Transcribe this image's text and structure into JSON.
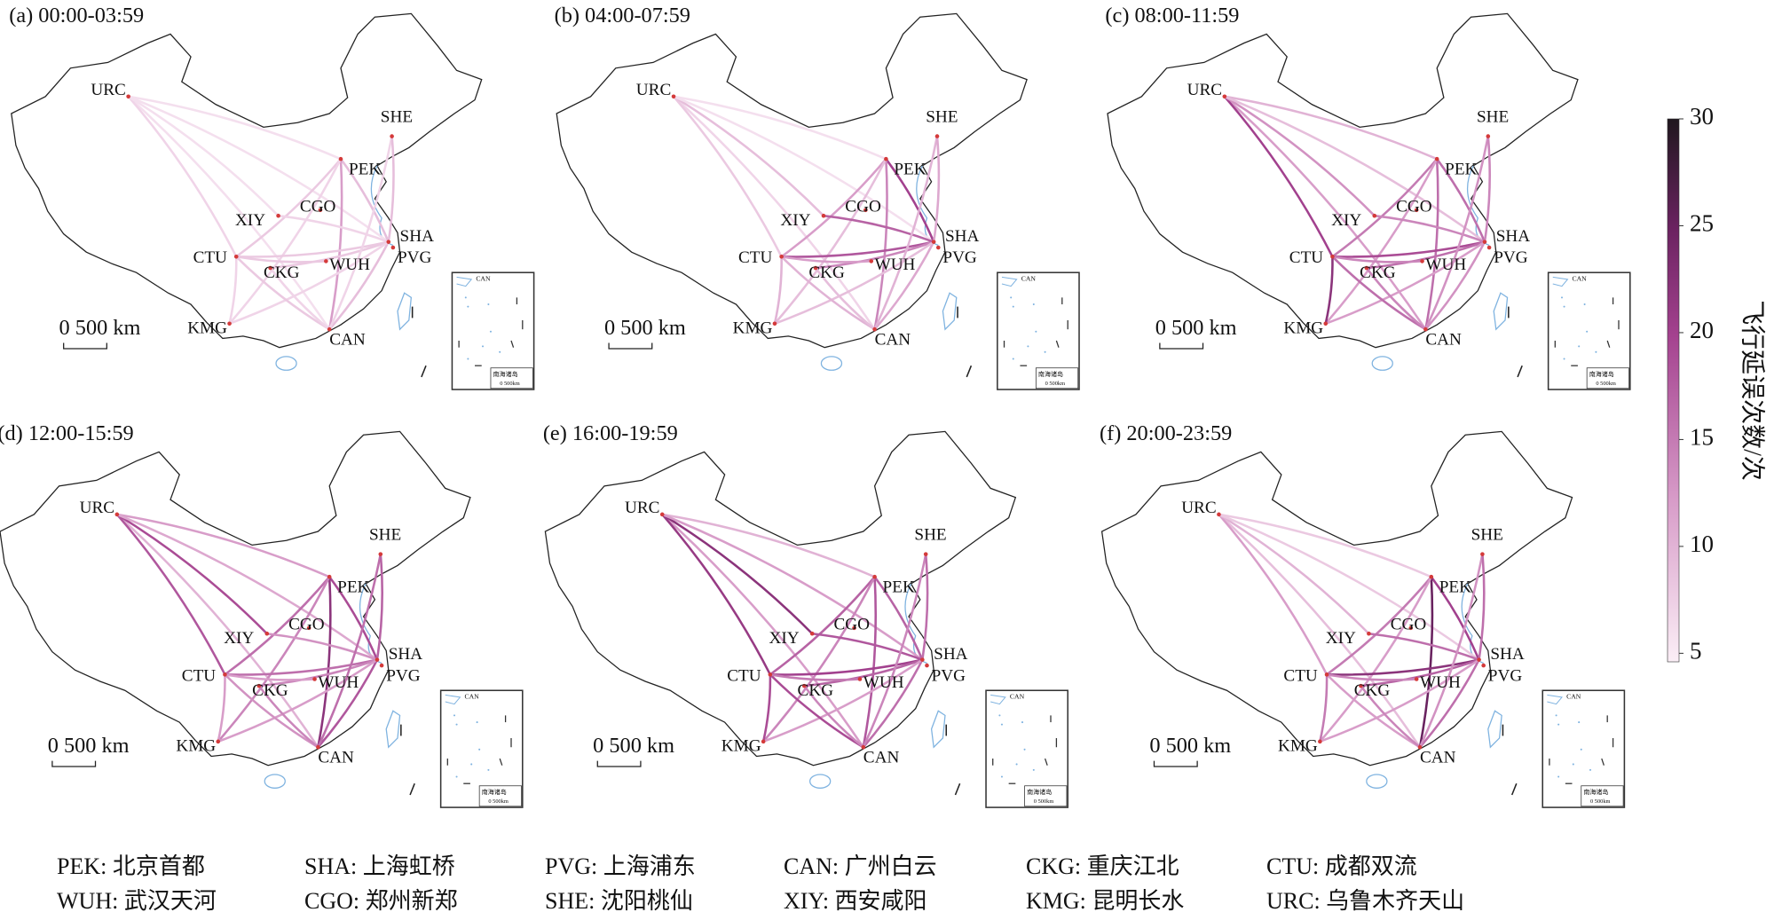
{
  "panels": [
    {
      "title": "(a) 00:00-03:59",
      "routes": [
        [
          "URC",
          "PEK",
          6
        ],
        [
          "URC",
          "CAN",
          6
        ],
        [
          "URC",
          "CTU",
          7
        ],
        [
          "URC",
          "XIY",
          6
        ],
        [
          "URC",
          "SHA",
          6
        ],
        [
          "PEK",
          "SHA",
          9
        ],
        [
          "PEK",
          "CAN",
          12
        ],
        [
          "PEK",
          "CTU",
          8
        ],
        [
          "PEK",
          "KMG",
          7
        ],
        [
          "SHA",
          "CTU",
          8
        ],
        [
          "SHA",
          "CKG",
          8
        ],
        [
          "SHA",
          "CAN",
          9
        ],
        [
          "SHA",
          "KMG",
          7
        ],
        [
          "CAN",
          "CTU",
          8
        ],
        [
          "CAN",
          "CKG",
          7
        ],
        [
          "CTU",
          "KMG",
          7
        ],
        [
          "XIY",
          "SHA",
          7
        ],
        [
          "SHE",
          "CAN",
          7
        ],
        [
          "SHE",
          "SHA",
          9
        ],
        [
          "WUH",
          "CTU",
          8
        ]
      ]
    },
    {
      "title": "(b) 04:00-07:59",
      "routes": [
        [
          "URC",
          "PEK",
          6
        ],
        [
          "URC",
          "CAN",
          7
        ],
        [
          "URC",
          "CTU",
          8
        ],
        [
          "URC",
          "XIY",
          9
        ],
        [
          "URC",
          "SHA",
          6
        ],
        [
          "PEK",
          "SHA",
          20
        ],
        [
          "PEK",
          "CAN",
          14
        ],
        [
          "PEK",
          "CTU",
          12
        ],
        [
          "PEK",
          "KMG",
          9
        ],
        [
          "SHA",
          "CTU",
          18
        ],
        [
          "SHA",
          "CKG",
          14
        ],
        [
          "SHA",
          "CAN",
          11
        ],
        [
          "SHA",
          "KMG",
          9
        ],
        [
          "CAN",
          "CTU",
          10
        ],
        [
          "CAN",
          "CKG",
          9
        ],
        [
          "CTU",
          "KMG",
          10
        ],
        [
          "XIY",
          "SHA",
          17
        ],
        [
          "SHE",
          "CAN",
          10
        ],
        [
          "SHE",
          "SHA",
          11
        ],
        [
          "WUH",
          "CTU",
          12
        ]
      ]
    },
    {
      "title": "(c) 08:00-11:59",
      "routes": [
        [
          "URC",
          "PEK",
          10
        ],
        [
          "URC",
          "CAN",
          12
        ],
        [
          "URC",
          "CTU",
          20
        ],
        [
          "URC",
          "XIY",
          13
        ],
        [
          "URC",
          "SHA",
          9
        ],
        [
          "PEK",
          "SHA",
          16
        ],
        [
          "PEK",
          "CAN",
          16
        ],
        [
          "PEK",
          "CTU",
          15
        ],
        [
          "PEK",
          "KMG",
          12
        ],
        [
          "SHA",
          "CTU",
          19
        ],
        [
          "SHA",
          "CKG",
          16
        ],
        [
          "SHA",
          "CAN",
          13
        ],
        [
          "SHA",
          "KMG",
          12
        ],
        [
          "CAN",
          "CTU",
          16
        ],
        [
          "CAN",
          "CKG",
          14
        ],
        [
          "CTU",
          "KMG",
          22
        ],
        [
          "XIY",
          "SHA",
          14
        ],
        [
          "SHE",
          "CAN",
          13
        ],
        [
          "SHE",
          "SHA",
          14
        ],
        [
          "WUH",
          "CTU",
          14
        ]
      ]
    },
    {
      "title": "(d) 12:00-15:59",
      "routes": [
        [
          "URC",
          "PEK",
          12
        ],
        [
          "URC",
          "CAN",
          10
        ],
        [
          "URC",
          "CTU",
          18
        ],
        [
          "URC",
          "XIY",
          19
        ],
        [
          "URC",
          "SHA",
          11
        ],
        [
          "PEK",
          "SHA",
          19
        ],
        [
          "PEK",
          "CAN",
          22
        ],
        [
          "PEK",
          "CTU",
          16
        ],
        [
          "PEK",
          "KMG",
          14
        ],
        [
          "SHA",
          "CTU",
          16
        ],
        [
          "SHA",
          "CKG",
          14
        ],
        [
          "SHA",
          "CAN",
          18
        ],
        [
          "SHA",
          "KMG",
          12
        ],
        [
          "CAN",
          "CTU",
          13
        ],
        [
          "CAN",
          "CKG",
          14
        ],
        [
          "CTU",
          "KMG",
          12
        ],
        [
          "XIY",
          "SHA",
          13
        ],
        [
          "SHE",
          "CAN",
          16
        ],
        [
          "SHE",
          "SHA",
          17
        ],
        [
          "WUH",
          "CTU",
          12
        ]
      ]
    },
    {
      "title": "(e) 16:00-19:59",
      "routes": [
        [
          "URC",
          "PEK",
          10
        ],
        [
          "URC",
          "CAN",
          12
        ],
        [
          "URC",
          "CTU",
          21
        ],
        [
          "URC",
          "XIY",
          22
        ],
        [
          "URC",
          "SHA",
          12
        ],
        [
          "PEK",
          "SHA",
          17
        ],
        [
          "PEK",
          "CAN",
          18
        ],
        [
          "PEK",
          "CTU",
          17
        ],
        [
          "PEK",
          "KMG",
          14
        ],
        [
          "SHA",
          "CTU",
          20
        ],
        [
          "SHA",
          "CKG",
          17
        ],
        [
          "SHA",
          "CAN",
          16
        ],
        [
          "SHA",
          "KMG",
          12
        ],
        [
          "CAN",
          "CTU",
          19
        ],
        [
          "CAN",
          "CKG",
          14
        ],
        [
          "CTU",
          "KMG",
          19
        ],
        [
          "XIY",
          "SHA",
          18
        ],
        [
          "SHE",
          "CAN",
          14
        ],
        [
          "SHE",
          "SHA",
          16
        ],
        [
          "WUH",
          "CTU",
          15
        ]
      ]
    },
    {
      "title": "(f) 20:00-23:59",
      "routes": [
        [
          "URC",
          "PEK",
          8
        ],
        [
          "URC",
          "CAN",
          9
        ],
        [
          "URC",
          "CTU",
          12
        ],
        [
          "URC",
          "XIY",
          10
        ],
        [
          "URC",
          "SHA",
          8
        ],
        [
          "PEK",
          "SHA",
          20
        ],
        [
          "PEK",
          "CAN",
          25
        ],
        [
          "PEK",
          "CTU",
          15
        ],
        [
          "PEK",
          "KMG",
          12
        ],
        [
          "SHA",
          "CTU",
          22
        ],
        [
          "SHA",
          "CKG",
          17
        ],
        [
          "SHA",
          "CAN",
          16
        ],
        [
          "SHA",
          "KMG",
          12
        ],
        [
          "CAN",
          "CTU",
          12
        ],
        [
          "CAN",
          "CKG",
          14
        ],
        [
          "CTU",
          "KMG",
          15
        ],
        [
          "XIY",
          "SHA",
          16
        ],
        [
          "SHE",
          "CAN",
          13
        ],
        [
          "SHE",
          "SHA",
          16
        ],
        [
          "WUH",
          "CTU",
          14
        ]
      ]
    }
  ],
  "airport_labels": [
    "URC",
    "SHE",
    "PEK",
    "XIY",
    "CGO",
    "SHA",
    "PVG",
    "CTU",
    "CKG",
    "WUH",
    "KMG",
    "CAN"
  ],
  "scale_bar": "0  500 km",
  "inset": {
    "label": "CAN",
    "title": "南海诸岛",
    "scale": "0  500km"
  },
  "colorbar": {
    "title": "飞行延误次数/次",
    "lim": [
      4.6,
      30
    ],
    "ticks": [
      5,
      10,
      15,
      20,
      25,
      30
    ]
  },
  "legend": [
    "PEK: 北京首都",
    "SHA: 上海虹桥",
    "PVG: 上海浦东",
    "CAN: 广州白云",
    "CKG: 重庆江北",
    "CTU: 成都双流",
    "WUH: 武汉天河",
    "CGO: 郑州新郑",
    "SHE: 沈阳桃仙",
    "XIY: 西安咸阳",
    "KMG: 昆明长水",
    "URC: 乌鲁木齐天山"
  ]
}
